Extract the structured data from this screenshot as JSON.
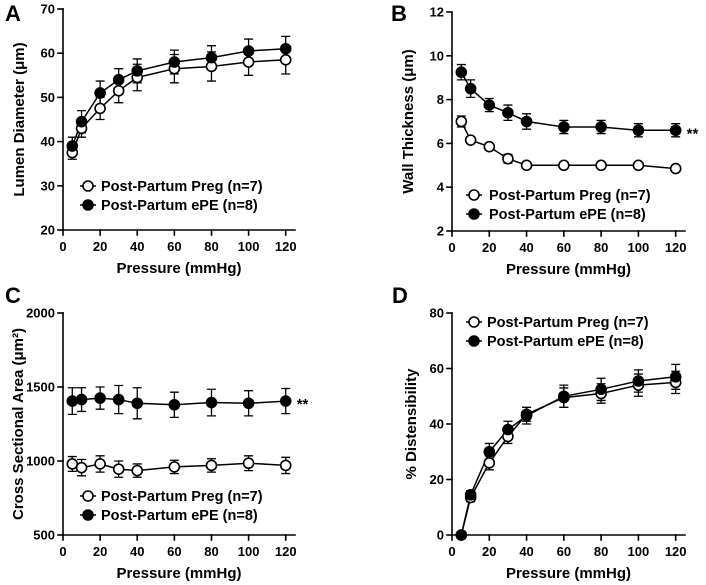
{
  "chart_data": [
    {
      "panel": "A",
      "type": "line",
      "title": "",
      "xlabel": "Pressure (mmHg)",
      "ylabel": "Lumen Diameter (μm)",
      "xlim": [
        0,
        125
      ],
      "ylim": [
        20,
        70
      ],
      "xticks": [
        0,
        20,
        40,
        60,
        80,
        100,
        120
      ],
      "yticks": [
        20,
        30,
        40,
        50,
        60,
        70
      ],
      "grid": false,
      "legend": "bottom",
      "x": [
        5,
        10,
        20,
        30,
        40,
        60,
        80,
        100,
        120
      ],
      "series": [
        {
          "name": "Post-Partum Preg (n=7)",
          "fill": "#ffffff",
          "stroke": "#000000",
          "values": [
            37.5,
            43.0,
            47.5,
            51.5,
            54.5,
            56.5,
            57.0,
            58.0,
            58.5
          ],
          "error": [
            1.5,
            2.0,
            2.5,
            2.7,
            3.0,
            3.2,
            3.3,
            3.0,
            3.2
          ]
        },
        {
          "name": "Post-Partum ePE (n=8)",
          "fill": "#000000",
          "stroke": "#000000",
          "values": [
            39.0,
            44.5,
            51.0,
            54.0,
            56.0,
            58.0,
            59.0,
            60.5,
            61.0
          ],
          "error": [
            2.0,
            2.5,
            2.7,
            2.5,
            2.7,
            2.7,
            2.7,
            2.7,
            2.8
          ]
        }
      ]
    },
    {
      "panel": "B",
      "type": "line",
      "title": "",
      "xlabel": "Pressure (mmHg)",
      "ylabel": "Wall Thickness (μm)",
      "xlim": [
        0,
        125
      ],
      "ylim": [
        2,
        12
      ],
      "xticks": [
        0,
        20,
        40,
        60,
        80,
        100,
        120
      ],
      "yticks": [
        2,
        4,
        6,
        8,
        10,
        12
      ],
      "grid": false,
      "legend": "bottom",
      "x": [
        5,
        10,
        20,
        30,
        40,
        60,
        80,
        100,
        120
      ],
      "series": [
        {
          "name": "Post-Partum Preg (n=7)",
          "fill": "#ffffff",
          "stroke": "#000000",
          "values": [
            7.0,
            6.15,
            5.85,
            5.3,
            5.0,
            5.0,
            5.0,
            5.0,
            4.85
          ],
          "error": [
            0.25,
            0.1,
            0.1,
            0.2,
            0.1,
            0.05,
            0.05,
            0.05,
            0.05
          ]
        },
        {
          "name": "Post-Partum ePE (n=8)",
          "fill": "#000000",
          "stroke": "#000000",
          "values": [
            9.25,
            8.5,
            7.75,
            7.4,
            7.0,
            6.75,
            6.75,
            6.6,
            6.6
          ],
          "error": [
            0.35,
            0.4,
            0.3,
            0.35,
            0.35,
            0.3,
            0.3,
            0.3,
            0.3
          ]
        }
      ],
      "annotation": {
        "text": "**",
        "series_index": 1,
        "at_x": 120
      }
    },
    {
      "panel": "C",
      "type": "line",
      "title": "",
      "xlabel": "Pressure (mmHg)",
      "ylabel": "Cross Sectional Area (μm²)",
      "xlim": [
        0,
        125
      ],
      "ylim": [
        500,
        2000
      ],
      "xticks": [
        0,
        20,
        40,
        60,
        80,
        100,
        120
      ],
      "yticks": [
        500,
        1000,
        1500,
        2000
      ],
      "grid": false,
      "legend": "bottom",
      "x": [
        5,
        10,
        20,
        30,
        40,
        60,
        80,
        100,
        120
      ],
      "series": [
        {
          "name": "Post-Partum Preg (n=7)",
          "fill": "#ffffff",
          "stroke": "#000000",
          "values": [
            980,
            955,
            980,
            945,
            935,
            960,
            970,
            985,
            970
          ],
          "error": [
            50,
            55,
            55,
            55,
            45,
            45,
            45,
            50,
            55
          ]
        },
        {
          "name": "Post-Partum ePE (n=8)",
          "fill": "#000000",
          "stroke": "#000000",
          "values": [
            1405,
            1415,
            1425,
            1415,
            1390,
            1380,
            1395,
            1390,
            1405
          ],
          "error": [
            90,
            80,
            75,
            95,
            105,
            85,
            90,
            85,
            85
          ]
        }
      ],
      "annotation": {
        "text": "**",
        "series_index": 1,
        "at_x": 120
      }
    },
    {
      "panel": "D",
      "type": "line",
      "title": "",
      "xlabel": "Pressure (mmHg)",
      "ylabel": "% Distensibility",
      "xlim": [
        0,
        125
      ],
      "ylim": [
        0,
        80
      ],
      "xticks": [
        0,
        20,
        40,
        60,
        80,
        100,
        120
      ],
      "yticks": [
        0,
        20,
        40,
        60,
        80
      ],
      "grid": false,
      "legend": "top-left",
      "x": [
        5,
        10,
        20,
        30,
        40,
        60,
        80,
        100,
        120
      ],
      "series": [
        {
          "name": "Post-Partum Preg (n=7)",
          "fill": "#ffffff",
          "stroke": "#000000",
          "values": [
            0,
            13.5,
            26.0,
            35.5,
            43.5,
            49.5,
            51.0,
            54.0,
            55.0
          ],
          "error": [
            0,
            1.5,
            2.5,
            2.5,
            2.5,
            3.5,
            3.5,
            4.0,
            4.0
          ]
        },
        {
          "name": "Post-Partum ePE (n=8)",
          "fill": "#000000",
          "stroke": "#000000",
          "values": [
            0,
            14.5,
            30.0,
            38.0,
            43.0,
            50.0,
            52.5,
            55.5,
            57.0
          ],
          "error": [
            0,
            1.5,
            3.0,
            3.0,
            3.0,
            4.0,
            4.0,
            4.0,
            4.5
          ]
        }
      ]
    }
  ]
}
